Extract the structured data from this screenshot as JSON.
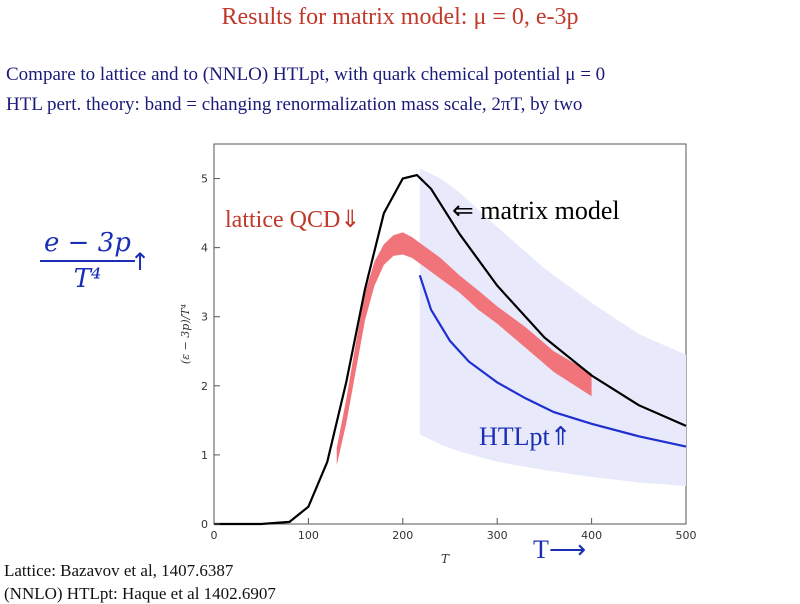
{
  "slide": {
    "title": "Results for matrix model: μ = 0, e-3p",
    "line1": "Compare to lattice and to (NNLO) HTLpt, with quark chemical potential μ = 0",
    "line2": "HTL pert. theory: band = changing renormalization mass scale, 2πT, by two",
    "ref1": "Lattice: Bazavov et al, 1407.6387",
    "ref2": "(NNLO) HTLpt: Haque et al 1402.6907",
    "ylabel_num": "e − 3p",
    "ylabel_den": "T⁴",
    "ylabel_arrow": "↑"
  },
  "chart_data": {
    "type": "line",
    "title": "",
    "xlabel": "T",
    "ylabel": "(ε − 3p)/T⁴",
    "xlim": [
      0,
      500
    ],
    "ylim": [
      0,
      5.5
    ],
    "xticks": [
      0,
      100,
      200,
      300,
      400,
      500
    ],
    "yticks": [
      0,
      1,
      2,
      3,
      4,
      5
    ],
    "annotations": {
      "lattice": "lattice QCD⇓",
      "matrix": "⇐ matrix model",
      "htl": "HTLpt⇑",
      "tarrow": "T⟶"
    },
    "colors": {
      "matrix": "#000000",
      "lattice": "#f0747a",
      "htl_line": "#1f2fd0",
      "htl_band": "#e8eafb",
      "annotation_red": "#c0392b",
      "annotation_blue": "#1a2fb5"
    },
    "series": [
      {
        "name": "matrix model",
        "x": [
          0,
          50,
          80,
          100,
          120,
          140,
          160,
          180,
          200,
          215,
          230,
          260,
          300,
          350,
          400,
          450,
          500
        ],
        "y": [
          0,
          0,
          0.03,
          0.25,
          0.9,
          2.05,
          3.4,
          4.5,
          5.0,
          5.05,
          4.85,
          4.2,
          3.45,
          2.7,
          2.15,
          1.72,
          1.42
        ]
      },
      {
        "name": "lattice QCD",
        "type": "band",
        "x": [
          130,
          140,
          150,
          160,
          170,
          180,
          190,
          200,
          210,
          220,
          240,
          260,
          280,
          300,
          330,
          360,
          400
        ],
        "y_low": [
          0.85,
          1.45,
          2.2,
          2.95,
          3.45,
          3.75,
          3.88,
          3.9,
          3.85,
          3.75,
          3.55,
          3.35,
          3.1,
          2.9,
          2.55,
          2.2,
          1.85
        ],
        "y_high": [
          1.1,
          1.8,
          2.6,
          3.35,
          3.8,
          4.05,
          4.18,
          4.22,
          4.15,
          4.05,
          3.85,
          3.6,
          3.38,
          3.15,
          2.85,
          2.5,
          2.18
        ]
      },
      {
        "name": "HTLpt",
        "x": [
          218,
          230,
          250,
          270,
          300,
          330,
          360,
          400,
          450,
          500
        ],
        "y": [
          3.6,
          3.1,
          2.65,
          2.35,
          2.05,
          1.82,
          1.62,
          1.45,
          1.27,
          1.12
        ]
      },
      {
        "name": "HTLpt band",
        "type": "band",
        "x": [
          218,
          240,
          260,
          300,
          350,
          400,
          450,
          500
        ],
        "y_low": [
          1.3,
          1.15,
          1.05,
          0.9,
          0.78,
          0.68,
          0.6,
          0.55
        ],
        "y_high": [
          5.15,
          5.0,
          4.8,
          4.3,
          3.7,
          3.2,
          2.75,
          2.45
        ]
      }
    ]
  }
}
